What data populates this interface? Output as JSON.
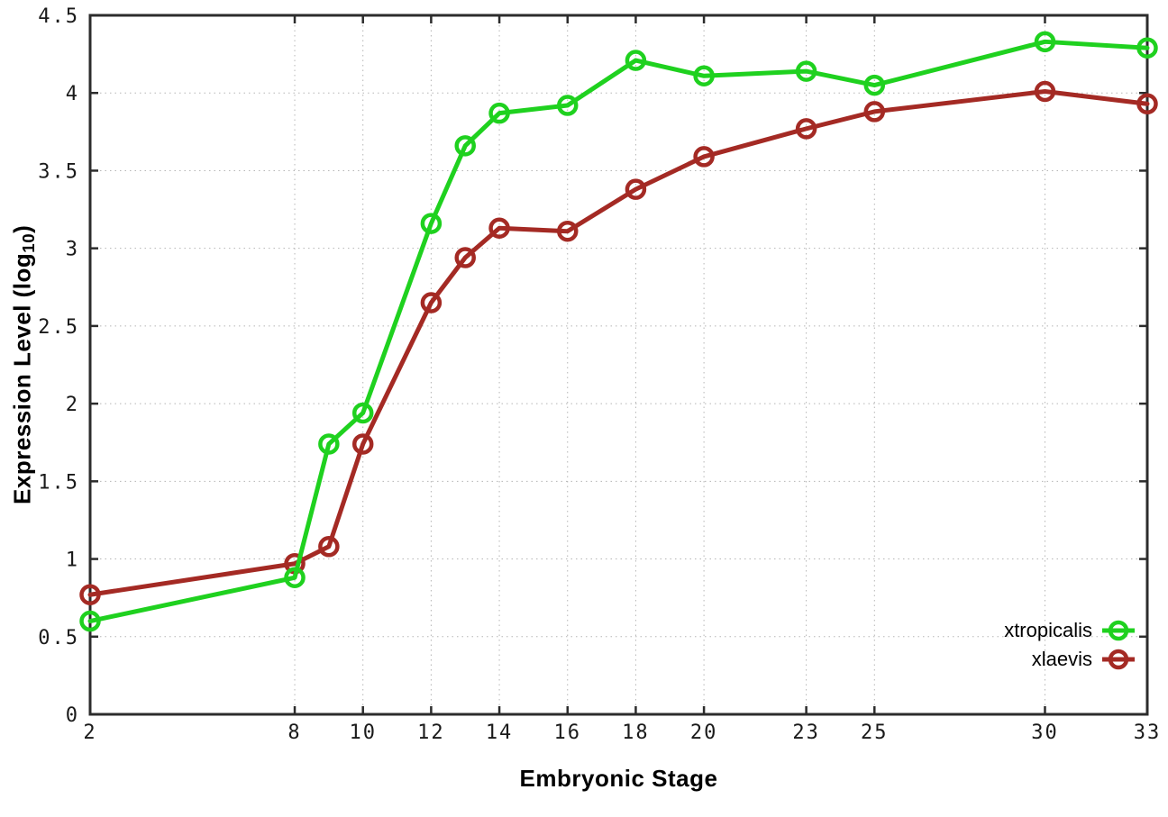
{
  "page": {
    "background": "#ffffff"
  },
  "style": {
    "border_color": "#2c2c2c",
    "grid_color": "#b5b5b5",
    "tick_color": "#2c2c2c",
    "tick_label_color": "#1a1a1a",
    "border_width": 3,
    "grid_dash": "1.5 4",
    "tick_length": 9,
    "line_width": 5,
    "marker_radius": 9.5,
    "marker_stroke": 4.5
  },
  "chart_data": {
    "type": "line",
    "title": "",
    "xlabel": "Embryonic Stage",
    "ylabel": "Expression Level (log10)",
    "ylabel_parts": {
      "pre": "Expression Level (log",
      "sub": "10",
      "post": ")"
    },
    "xlim": [
      2,
      33
    ],
    "ylim": [
      0,
      4.5
    ],
    "grid": true,
    "legend_position": "inside-bottom-right",
    "x": [
      2,
      8,
      9,
      10,
      12,
      13,
      14,
      16,
      18,
      20,
      23,
      25,
      30,
      33
    ],
    "x_tick_values": [
      2,
      8,
      10,
      12,
      14,
      16,
      18,
      20,
      23,
      25,
      30,
      33
    ],
    "x_tick_labels": [
      "2",
      "8",
      "10",
      "12",
      "14",
      "16",
      "18",
      "20",
      "23",
      "25",
      "30",
      "33"
    ],
    "y_tick_values": [
      0,
      0.5,
      1,
      1.5,
      2,
      2.5,
      3,
      3.5,
      4,
      4.5
    ],
    "y_tick_labels": [
      "0",
      "0.5",
      "1",
      "1.5",
      "2",
      "2.5",
      "3",
      "3.5",
      "4",
      "4.5"
    ],
    "series": [
      {
        "name": "xtropicalis",
        "color": "#1fd11f",
        "values": [
          0.6,
          0.88,
          1.74,
          1.94,
          3.16,
          3.66,
          3.87,
          3.92,
          4.21,
          4.11,
          4.14,
          4.05,
          4.33,
          4.29
        ]
      },
      {
        "name": "xlaevis",
        "color": "#a42a24",
        "values": [
          0.77,
          0.97,
          1.08,
          1.74,
          2.65,
          2.94,
          3.13,
          3.11,
          3.38,
          3.59,
          3.77,
          3.88,
          4.01,
          3.93
        ]
      }
    ]
  }
}
